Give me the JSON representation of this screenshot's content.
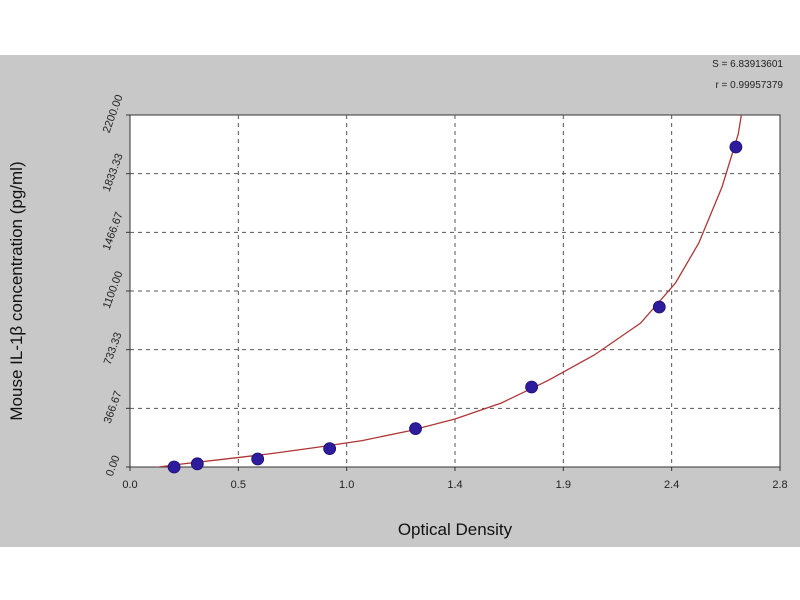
{
  "chart_data": {
    "type": "scatter",
    "title": "",
    "xlabel": "Optical Density",
    "ylabel": "Mouse IL-1β concentration (pg/ml)",
    "xlim": [
      0.0,
      2.8
    ],
    "ylim": [
      0.0,
      2200.0
    ],
    "x_tick_labels": [
      "0.0",
      "0.5",
      "1.0",
      "1.4",
      "1.9",
      "2.4",
      "2.8"
    ],
    "y_tick_labels": [
      "0.00",
      "366.67",
      "733.33",
      "1100.00",
      "1466.67",
      "1833.33",
      "2200.00"
    ],
    "grid": true,
    "series": [
      {
        "points": [
          {
            "x": 0.19,
            "y": 0
          },
          {
            "x": 0.29,
            "y": 20
          },
          {
            "x": 0.55,
            "y": 50
          },
          {
            "x": 0.86,
            "y": 115
          },
          {
            "x": 1.23,
            "y": 240
          },
          {
            "x": 1.73,
            "y": 500
          },
          {
            "x": 2.28,
            "y": 1000
          },
          {
            "x": 2.61,
            "y": 2000
          }
        ]
      }
    ],
    "fit_curve": [
      {
        "x": 0.05,
        "y": -15
      },
      {
        "x": 0.2,
        "y": 15
      },
      {
        "x": 0.4,
        "y": 48
      },
      {
        "x": 0.6,
        "y": 82
      },
      {
        "x": 0.8,
        "y": 122
      },
      {
        "x": 1.0,
        "y": 165
      },
      {
        "x": 1.2,
        "y": 225
      },
      {
        "x": 1.4,
        "y": 300
      },
      {
        "x": 1.6,
        "y": 400
      },
      {
        "x": 1.8,
        "y": 540
      },
      {
        "x": 2.0,
        "y": 700
      },
      {
        "x": 2.2,
        "y": 900
      },
      {
        "x": 2.35,
        "y": 1150
      },
      {
        "x": 2.45,
        "y": 1400
      },
      {
        "x": 2.55,
        "y": 1750
      },
      {
        "x": 2.62,
        "y": 2080
      },
      {
        "x": 2.645,
        "y": 2300
      }
    ],
    "stats": [
      "S = 6.83913601",
      "r = 0.99957379"
    ],
    "colors": {
      "background": "#c8c8c8",
      "plot_area": "#ffffff",
      "marker": "#2e1c9e",
      "curve": "#b03535",
      "grid": "#555555"
    }
  }
}
